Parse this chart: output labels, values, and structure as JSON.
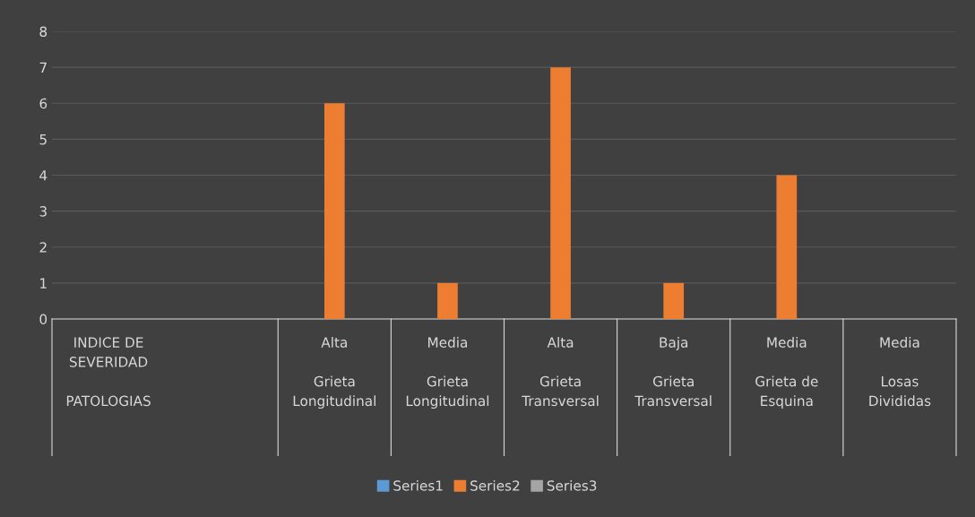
{
  "chart_data": {
    "type": "bar",
    "categories": [
      "INDICE DE\nSEVERIDAD\n\nPATOLOGIAS",
      null,
      "Alta\n\nGrieta\nLongitudinal",
      "Media\n\nGrieta\nLongitudinal",
      "Alta\n\nGrieta\nTransversal",
      "Baja\n\nGrieta\nTransversal",
      "Media\n\nGrieta de\nEsquina",
      "Media\n\nLosas\nDivididas"
    ],
    "series": [
      {
        "name": "Series1",
        "color": "#5b9bd5",
        "values": [
          null,
          null,
          null,
          null,
          null,
          null,
          null,
          null
        ]
      },
      {
        "name": "Series2",
        "color": "#ed7d31",
        "values": [
          null,
          null,
          6,
          1,
          7,
          1,
          4,
          null
        ]
      },
      {
        "name": "Series3",
        "color": "#a5a5a5",
        "values": [
          null,
          null,
          null,
          null,
          null,
          null,
          null,
          null
        ]
      }
    ],
    "ylim": [
      0,
      8
    ],
    "yticks": [
      0,
      1,
      2,
      3,
      4,
      5,
      6,
      7,
      8
    ],
    "grid": "y",
    "legend": "bottom"
  }
}
